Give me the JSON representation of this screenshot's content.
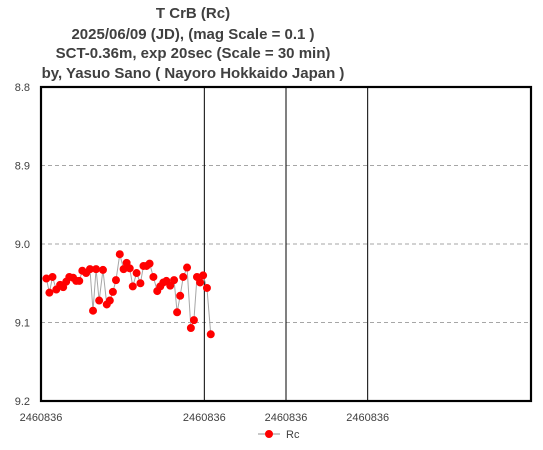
{
  "chart_data": {
    "type": "line",
    "title_lines": [
      "T CrB  (Rc)",
      "2025/06/09 (JD),   (mag Scale = 0.1 )",
      "SCT-0.36m, exp 20sec (Scale = 30 min)",
      "by, Yasuo Sano ( Nayoro Hokkaido Japan )"
    ],
    "xlabel": "",
    "ylabel": "",
    "x_unit": "minutes from left edge (Scale = 30 min per major division)",
    "xlim": [
      0,
      180
    ],
    "ylim": [
      8.8,
      9.2
    ],
    "y_inverted": true,
    "y_ticks": [
      "8.8",
      "8.9",
      "9.0",
      "9.1",
      "9.2"
    ],
    "y_tick_values": [
      8.8,
      8.9,
      9.0,
      9.1,
      9.2
    ],
    "x_ticks": [
      "2460836",
      "2460836",
      "2460836",
      "2460836"
    ],
    "x_tick_values": [
      0,
      60,
      90,
      120
    ],
    "x_gridlines": [
      60,
      90,
      120
    ],
    "legend": {
      "position": "bottom-center"
    },
    "series": [
      {
        "name": "Rc",
        "color": "#ff0000",
        "line_color": "#a6a6a6",
        "x": [
          1.97,
          3.09,
          4.22,
          5.62,
          7.03,
          8.15,
          9.27,
          10.4,
          11.8,
          12.93,
          14.05,
          15.18,
          16.58,
          17.98,
          19.11,
          20.23,
          21.36,
          22.76,
          24.16,
          25.29,
          26.41,
          27.54,
          28.94,
          30.34,
          31.46,
          32.59,
          33.72,
          35.12,
          36.52,
          37.64,
          38.77,
          39.89,
          41.29,
          42.7,
          43.82,
          44.94,
          46.07,
          47.47,
          48.88,
          50.0,
          51.12,
          52.25,
          53.65,
          55.06,
          56.18,
          57.3,
          58.43,
          59.55,
          60.96,
          62.36
        ],
        "y": [
          9.044,
          9.062,
          9.042,
          9.058,
          9.052,
          9.055,
          9.048,
          9.042,
          9.043,
          9.047,
          9.047,
          9.034,
          9.037,
          9.032,
          9.085,
          9.032,
          9.072,
          9.033,
          9.077,
          9.072,
          9.061,
          9.046,
          9.013,
          9.032,
          9.024,
          9.031,
          9.054,
          9.037,
          9.05,
          9.028,
          9.028,
          9.025,
          9.042,
          9.06,
          9.054,
          9.049,
          9.047,
          9.053,
          9.046,
          9.087,
          9.066,
          9.042,
          9.03,
          9.107,
          9.097,
          9.042,
          9.049,
          9.04,
          9.056,
          9.115
        ]
      }
    ]
  }
}
